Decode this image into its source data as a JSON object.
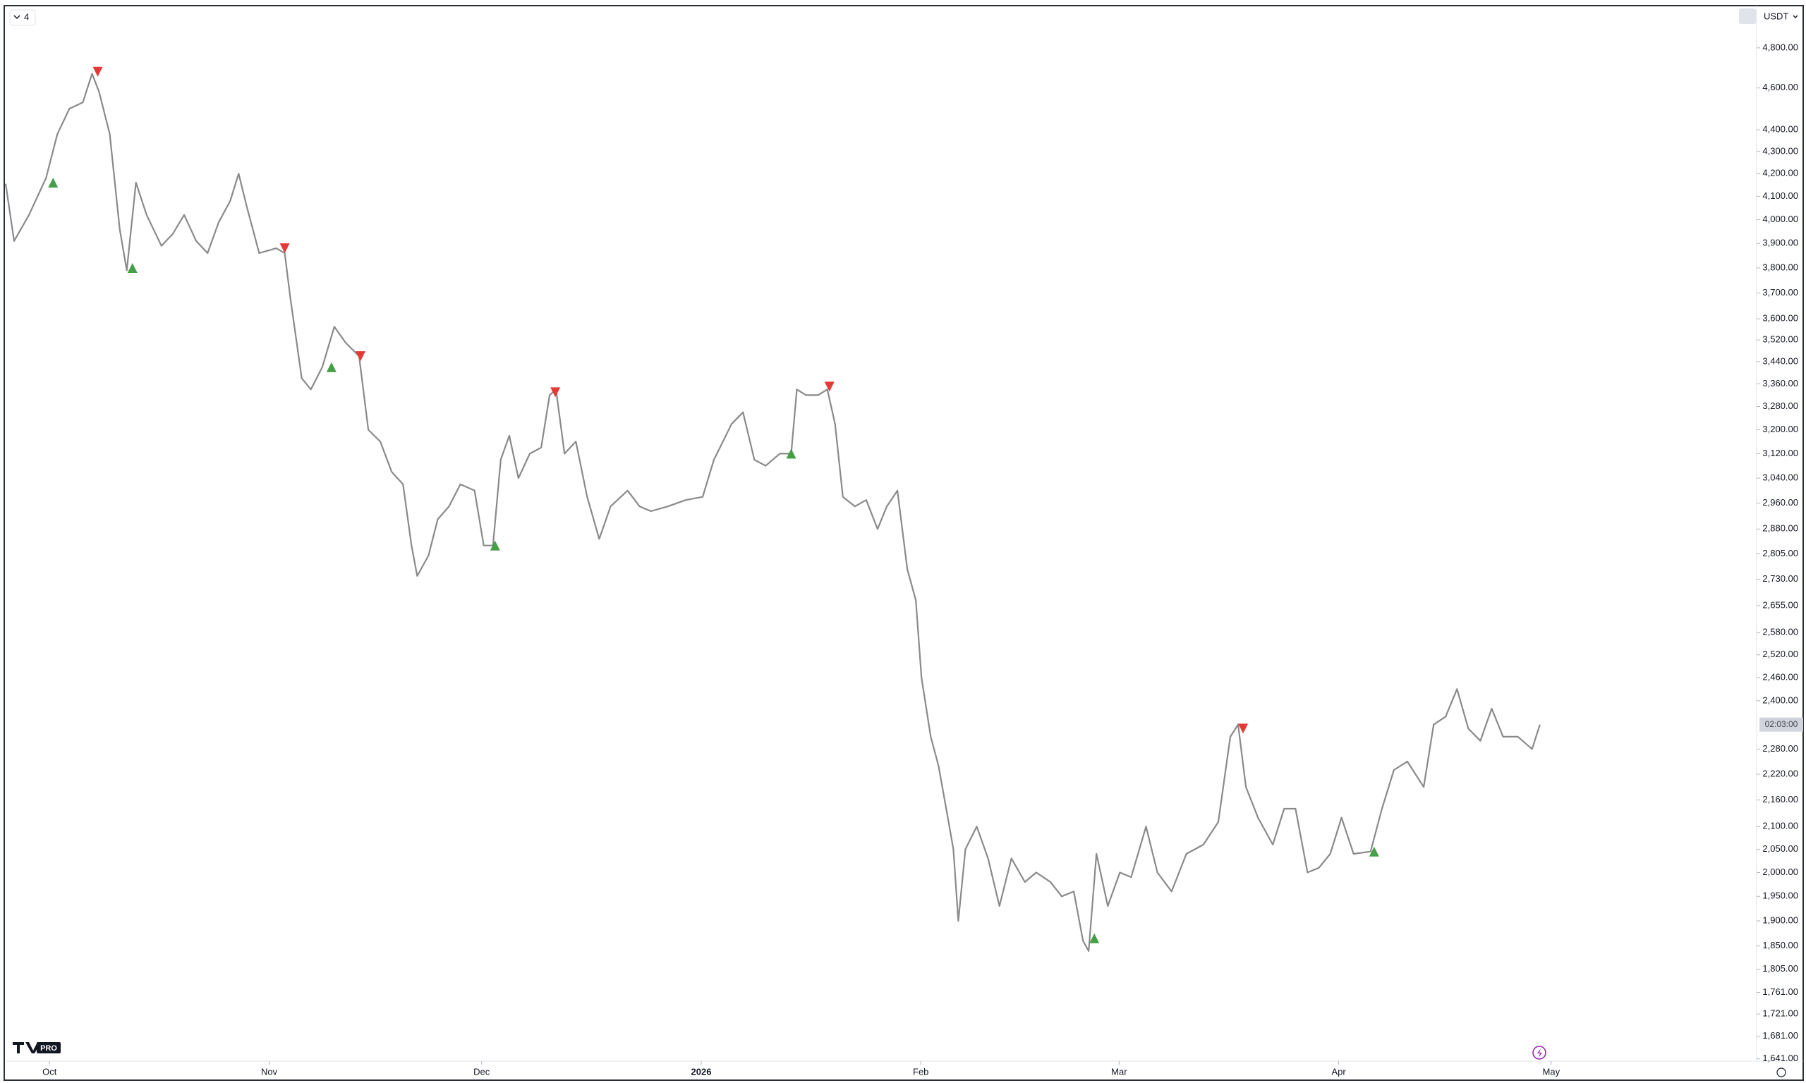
{
  "ui": {
    "interval": "4",
    "currency": "USDT",
    "countdown": "02:03:00",
    "logo": "PRO"
  },
  "chart_data": {
    "type": "line",
    "log_scale": true,
    "xlim": [
      -6.2,
      241
    ],
    "ylim": [
      1637,
      5020
    ],
    "xticks": [
      {
        "value": 0,
        "label": "Oct"
      },
      {
        "value": 31,
        "label": "Nov"
      },
      {
        "value": 61,
        "label": "Dec"
      },
      {
        "value": 92,
        "label": "2026"
      },
      {
        "value": 123,
        "label": "Feb"
      },
      {
        "value": 151,
        "label": "Mar"
      },
      {
        "value": 182,
        "label": "Apr"
      },
      {
        "value": 212,
        "label": "May"
      }
    ],
    "yticks": [
      {
        "value": 4800,
        "label": "4,800.00"
      },
      {
        "value": 4600,
        "label": "4,600.00"
      },
      {
        "value": 4400,
        "label": "4,400.00"
      },
      {
        "value": 4300,
        "label": "4,300.00"
      },
      {
        "value": 4200,
        "label": "4,200.00"
      },
      {
        "value": 4100,
        "label": "4,100.00"
      },
      {
        "value": 4000,
        "label": "4,000.00"
      },
      {
        "value": 3900,
        "label": "3,900.00"
      },
      {
        "value": 3800,
        "label": "3,800.00"
      },
      {
        "value": 3700,
        "label": "3,700.00"
      },
      {
        "value": 3600,
        "label": "3,600.00"
      },
      {
        "value": 3520,
        "label": "3,520.00"
      },
      {
        "value": 3440,
        "label": "3,440.00"
      },
      {
        "value": 3360,
        "label": "3,360.00"
      },
      {
        "value": 3280,
        "label": "3,280.00"
      },
      {
        "value": 3200,
        "label": "3,200.00"
      },
      {
        "value": 3120,
        "label": "3,120.00"
      },
      {
        "value": 3040,
        "label": "3,040.00"
      },
      {
        "value": 2960,
        "label": "2,960.00"
      },
      {
        "value": 2880,
        "label": "2,880.00"
      },
      {
        "value": 2805,
        "label": "2,805.00"
      },
      {
        "value": 2730,
        "label": "2,730.00"
      },
      {
        "value": 2655,
        "label": "2,655.00"
      },
      {
        "value": 2580,
        "label": "2,580.00"
      },
      {
        "value": 2520,
        "label": "2,520.00"
      },
      {
        "value": 2460,
        "label": "2,460.00"
      },
      {
        "value": 2400,
        "label": "2,400.00"
      },
      {
        "value": 2280,
        "label": "2,280.00"
      },
      {
        "value": 2220,
        "label": "2,220.00"
      },
      {
        "value": 2160,
        "label": "2,160.00"
      },
      {
        "value": 2100,
        "label": "2,100.00"
      },
      {
        "value": 2050,
        "label": "2,050.00"
      },
      {
        "value": 2000,
        "label": "2,000.00"
      },
      {
        "value": 1950,
        "label": "1,950.00"
      },
      {
        "value": 1900,
        "label": "1,900.00"
      },
      {
        "value": 1850,
        "label": "1,850.00"
      },
      {
        "value": 1805,
        "label": "1,805.00"
      },
      {
        "value": 1761,
        "label": "1,761.00"
      },
      {
        "value": 1721,
        "label": "1,721.00"
      },
      {
        "value": 1681,
        "label": "1,681.00"
      },
      {
        "value": 1641,
        "label": "1,641.00"
      }
    ],
    "x": [
      -6.2,
      -5.0,
      -2.9,
      -0.5,
      1.1,
      2.8,
      4.7,
      6.0,
      7.0,
      8.5,
      9.9,
      10.9,
      12.2,
      13.7,
      15.8,
      17.4,
      19.0,
      20.7,
      22.3,
      23.9,
      25.5,
      26.7,
      27.8,
      29.6,
      32.0,
      33.2,
      34.0,
      35.6,
      36.9,
      38.5,
      40.2,
      41.8,
      43.7,
      45.0,
      46.7,
      48.3,
      49.9,
      51.1,
      51.9,
      53.5,
      54.8,
      56.4,
      58.0,
      60.0,
      61.3,
      62.6,
      63.7,
      64.9,
      66.2,
      67.8,
      69.4,
      70.6,
      71.5,
      72.7,
      74.3,
      75.9,
      77.6,
      79.2,
      81.6,
      83.3,
      84.9,
      87.3,
      89.8,
      92.2,
      93.8,
      96.3,
      97.9,
      99.5,
      101.1,
      103.1,
      104.7,
      105.5,
      106.8,
      108.5,
      109.8,
      110.9,
      112.0,
      113.7,
      115.3,
      116.9,
      118.2,
      119.7,
      121.1,
      122.3,
      123.1,
      124.4,
      125.5,
      126.7,
      127.6,
      128.3,
      129.3,
      130.9,
      132.5,
      134.1,
      135.8,
      137.7,
      139.3,
      141.3,
      142.9,
      144.6,
      145.9,
      146.7,
      147.8,
      149.4,
      151.1,
      152.7,
      154.8,
      156.4,
      158.4,
      160.5,
      162.9,
      165.0,
      166.7,
      167.8,
      168.9,
      170.6,
      172.7,
      174.3,
      175.9,
      177.6,
      179.2,
      180.8,
      182.4,
      184.1,
      186.5,
      188.1,
      189.8,
      191.7,
      194.0,
      195.4,
      197.1,
      198.7,
      200.3,
      202.0,
      203.6,
      205.2,
      207.3,
      209.3,
      210.4
    ],
    "series": [
      {
        "color": "#8a8a8a",
        "values": [
          4155,
          3910,
          4020,
          4180,
          4380,
          4500,
          4530,
          4670,
          4580,
          4380,
          3960,
          3790,
          4160,
          4020,
          3890,
          3940,
          4020,
          3910,
          3860,
          3990,
          4080,
          4200,
          4060,
          3860,
          3880,
          3860,
          3680,
          3380,
          3340,
          3420,
          3570,
          3510,
          3460,
          3200,
          3160,
          3060,
          3020,
          2830,
          2740,
          2800,
          2910,
          2950,
          3020,
          3000,
          2830,
          2830,
          3100,
          3180,
          3040,
          3120,
          3140,
          3320,
          3340,
          3120,
          3160,
          2980,
          2850,
          2950,
          3000,
          2950,
          2935,
          2950,
          2970,
          2980,
          3100,
          3220,
          3260,
          3100,
          3080,
          3120,
          3120,
          3340,
          3320,
          3320,
          3340,
          3220,
          2980,
          2950,
          2970,
          2880,
          2950,
          3000,
          2760,
          2670,
          2460,
          2310,
          2240,
          2130,
          2050,
          1900,
          2050,
          2100,
          2030,
          1930,
          2030,
          1980,
          2000,
          1980,
          1950,
          1960,
          1860,
          1840,
          2040,
          1930,
          2000,
          1990,
          2100,
          2000,
          1960,
          2040,
          2060,
          2110,
          2310,
          2340,
          2190,
          2120,
          2060,
          2140,
          2140,
          2000,
          2010,
          2040,
          2120,
          2040,
          2045,
          2140,
          2230,
          2250,
          2190,
          2340,
          2360,
          2430,
          2330,
          2300,
          2380,
          2310,
          2310,
          2280,
          2340
        ]
      }
    ],
    "down_markers": {
      "color": "#e53935",
      "x": [
        6.8,
        33.2,
        43.9,
        71.4,
        110.1,
        168.5
      ],
      "values": [
        4680,
        3880,
        3460,
        3330,
        3350,
        2330
      ]
    },
    "up_markers": {
      "color": "#43a047",
      "x": [
        0.5,
        11.7,
        39.8,
        62.9,
        104.7,
        147.5,
        187.0
      ],
      "values": [
        4160,
        3800,
        3420,
        2830,
        3120,
        1865,
        2045
      ]
    }
  }
}
